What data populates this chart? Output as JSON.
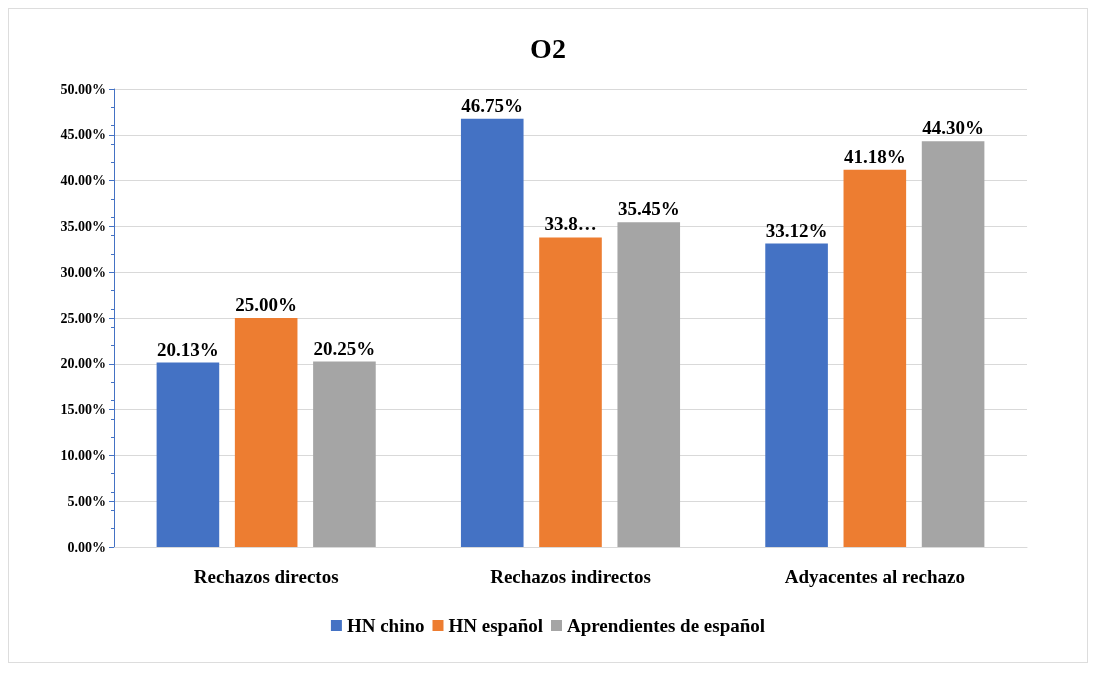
{
  "chart_data": {
    "type": "bar",
    "title": "O2",
    "categories": [
      "Rechazos directos",
      "Rechazos indirectos",
      "Adyacentes al rechazo"
    ],
    "series": [
      {
        "name": "HN chino",
        "color": "#4472c4",
        "values": [
          20.13,
          46.75,
          33.12
        ],
        "value_labels": [
          "20.13%",
          "46.75%",
          "33.12%"
        ]
      },
      {
        "name": "HN español",
        "color": "#ed7d31",
        "values": [
          25.0,
          33.8,
          41.18
        ],
        "value_labels": [
          "25.00%",
          "33.8…",
          "41.18%"
        ]
      },
      {
        "name": "Aprendientes de español",
        "color": "#a5a5a5",
        "values": [
          20.25,
          35.45,
          44.3
        ],
        "value_labels": [
          "20.25%",
          "35.45%",
          "44.30%"
        ]
      }
    ],
    "ylim": [
      0,
      50
    ],
    "yticks": [
      {
        "value": 0,
        "label": "0.00%"
      },
      {
        "value": 5,
        "label": "5.00%"
      },
      {
        "value": 10,
        "label": "10.00%"
      },
      {
        "value": 15,
        "label": "15.00%"
      },
      {
        "value": 20,
        "label": "20.00%"
      },
      {
        "value": 25,
        "label": "25.00%"
      },
      {
        "value": 30,
        "label": "30.00%"
      },
      {
        "value": 35,
        "label": "35.00%"
      },
      {
        "value": 40,
        "label": "40.00%"
      },
      {
        "value": 45,
        "label": "45.00%"
      },
      {
        "value": 50,
        "label": "50.00%"
      }
    ],
    "grid": "y",
    "legend": "bottom"
  }
}
